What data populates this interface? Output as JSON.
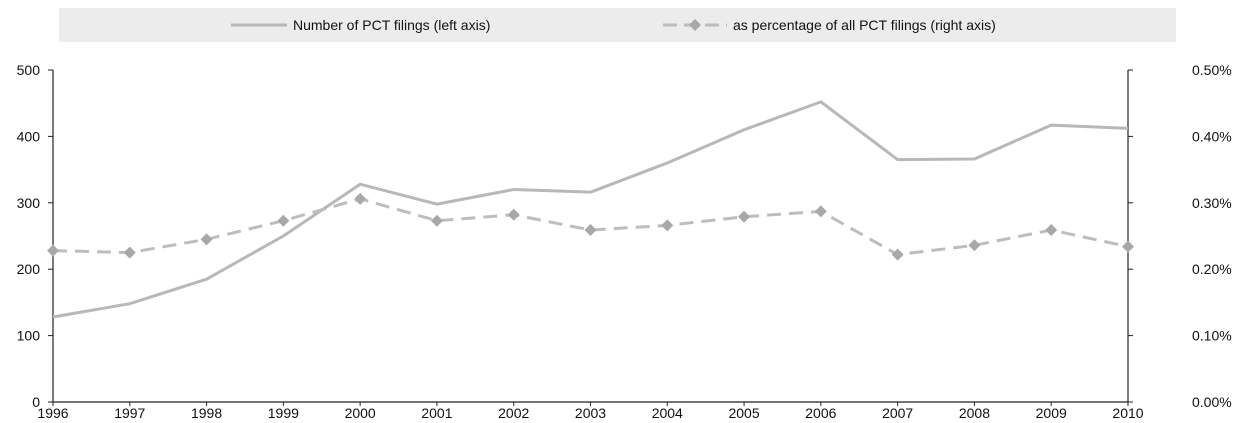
{
  "legend": {
    "count_label": "Number of PCT filings (left axis)",
    "pct_label": "as percentage of all PCT filings (right axis)"
  },
  "colors": {
    "count_line": "#b8b8b8",
    "pct_line": "#bdbdbd",
    "pct_marker": "#a8a8a8",
    "axis": "#222222",
    "legend_bg": "#ececec"
  },
  "chart_data": {
    "type": "line",
    "title": "",
    "categories": [
      "1996",
      "1997",
      "1998",
      "1999",
      "2000",
      "2001",
      "2002",
      "2003",
      "2004",
      "2005",
      "2006",
      "2007",
      "2008",
      "2009",
      "2010"
    ],
    "series": [
      {
        "name": "Number of PCT filings (left axis)",
        "axis": "left",
        "style": "solid",
        "values": [
          128,
          148,
          185,
          250,
          328,
          298,
          320,
          316,
          360,
          410,
          452,
          365,
          366,
          417,
          412
        ]
      },
      {
        "name": "as percentage of all PCT filings (right axis)",
        "axis": "right",
        "style": "dashed-diamond",
        "values": [
          0.228,
          0.225,
          0.245,
          0.273,
          0.306,
          0.273,
          0.282,
          0.259,
          0.266,
          0.279,
          0.287,
          0.222,
          0.236,
          0.259,
          0.234
        ]
      }
    ],
    "y_left": {
      "range": [
        0,
        500
      ],
      "ticks": [
        0,
        100,
        200,
        300,
        400,
        500
      ],
      "tick_labels": [
        "0",
        "100",
        "200",
        "300",
        "400",
        "500"
      ]
    },
    "y_right": {
      "range": [
        0,
        0.5
      ],
      "ticks": [
        0,
        0.1,
        0.2,
        0.3,
        0.4,
        0.5
      ],
      "tick_labels": [
        "0.00%",
        "0.10%",
        "0.20%",
        "0.30%",
        "0.40%",
        "0.50%"
      ]
    },
    "grid": false,
    "legend_position": "top"
  }
}
